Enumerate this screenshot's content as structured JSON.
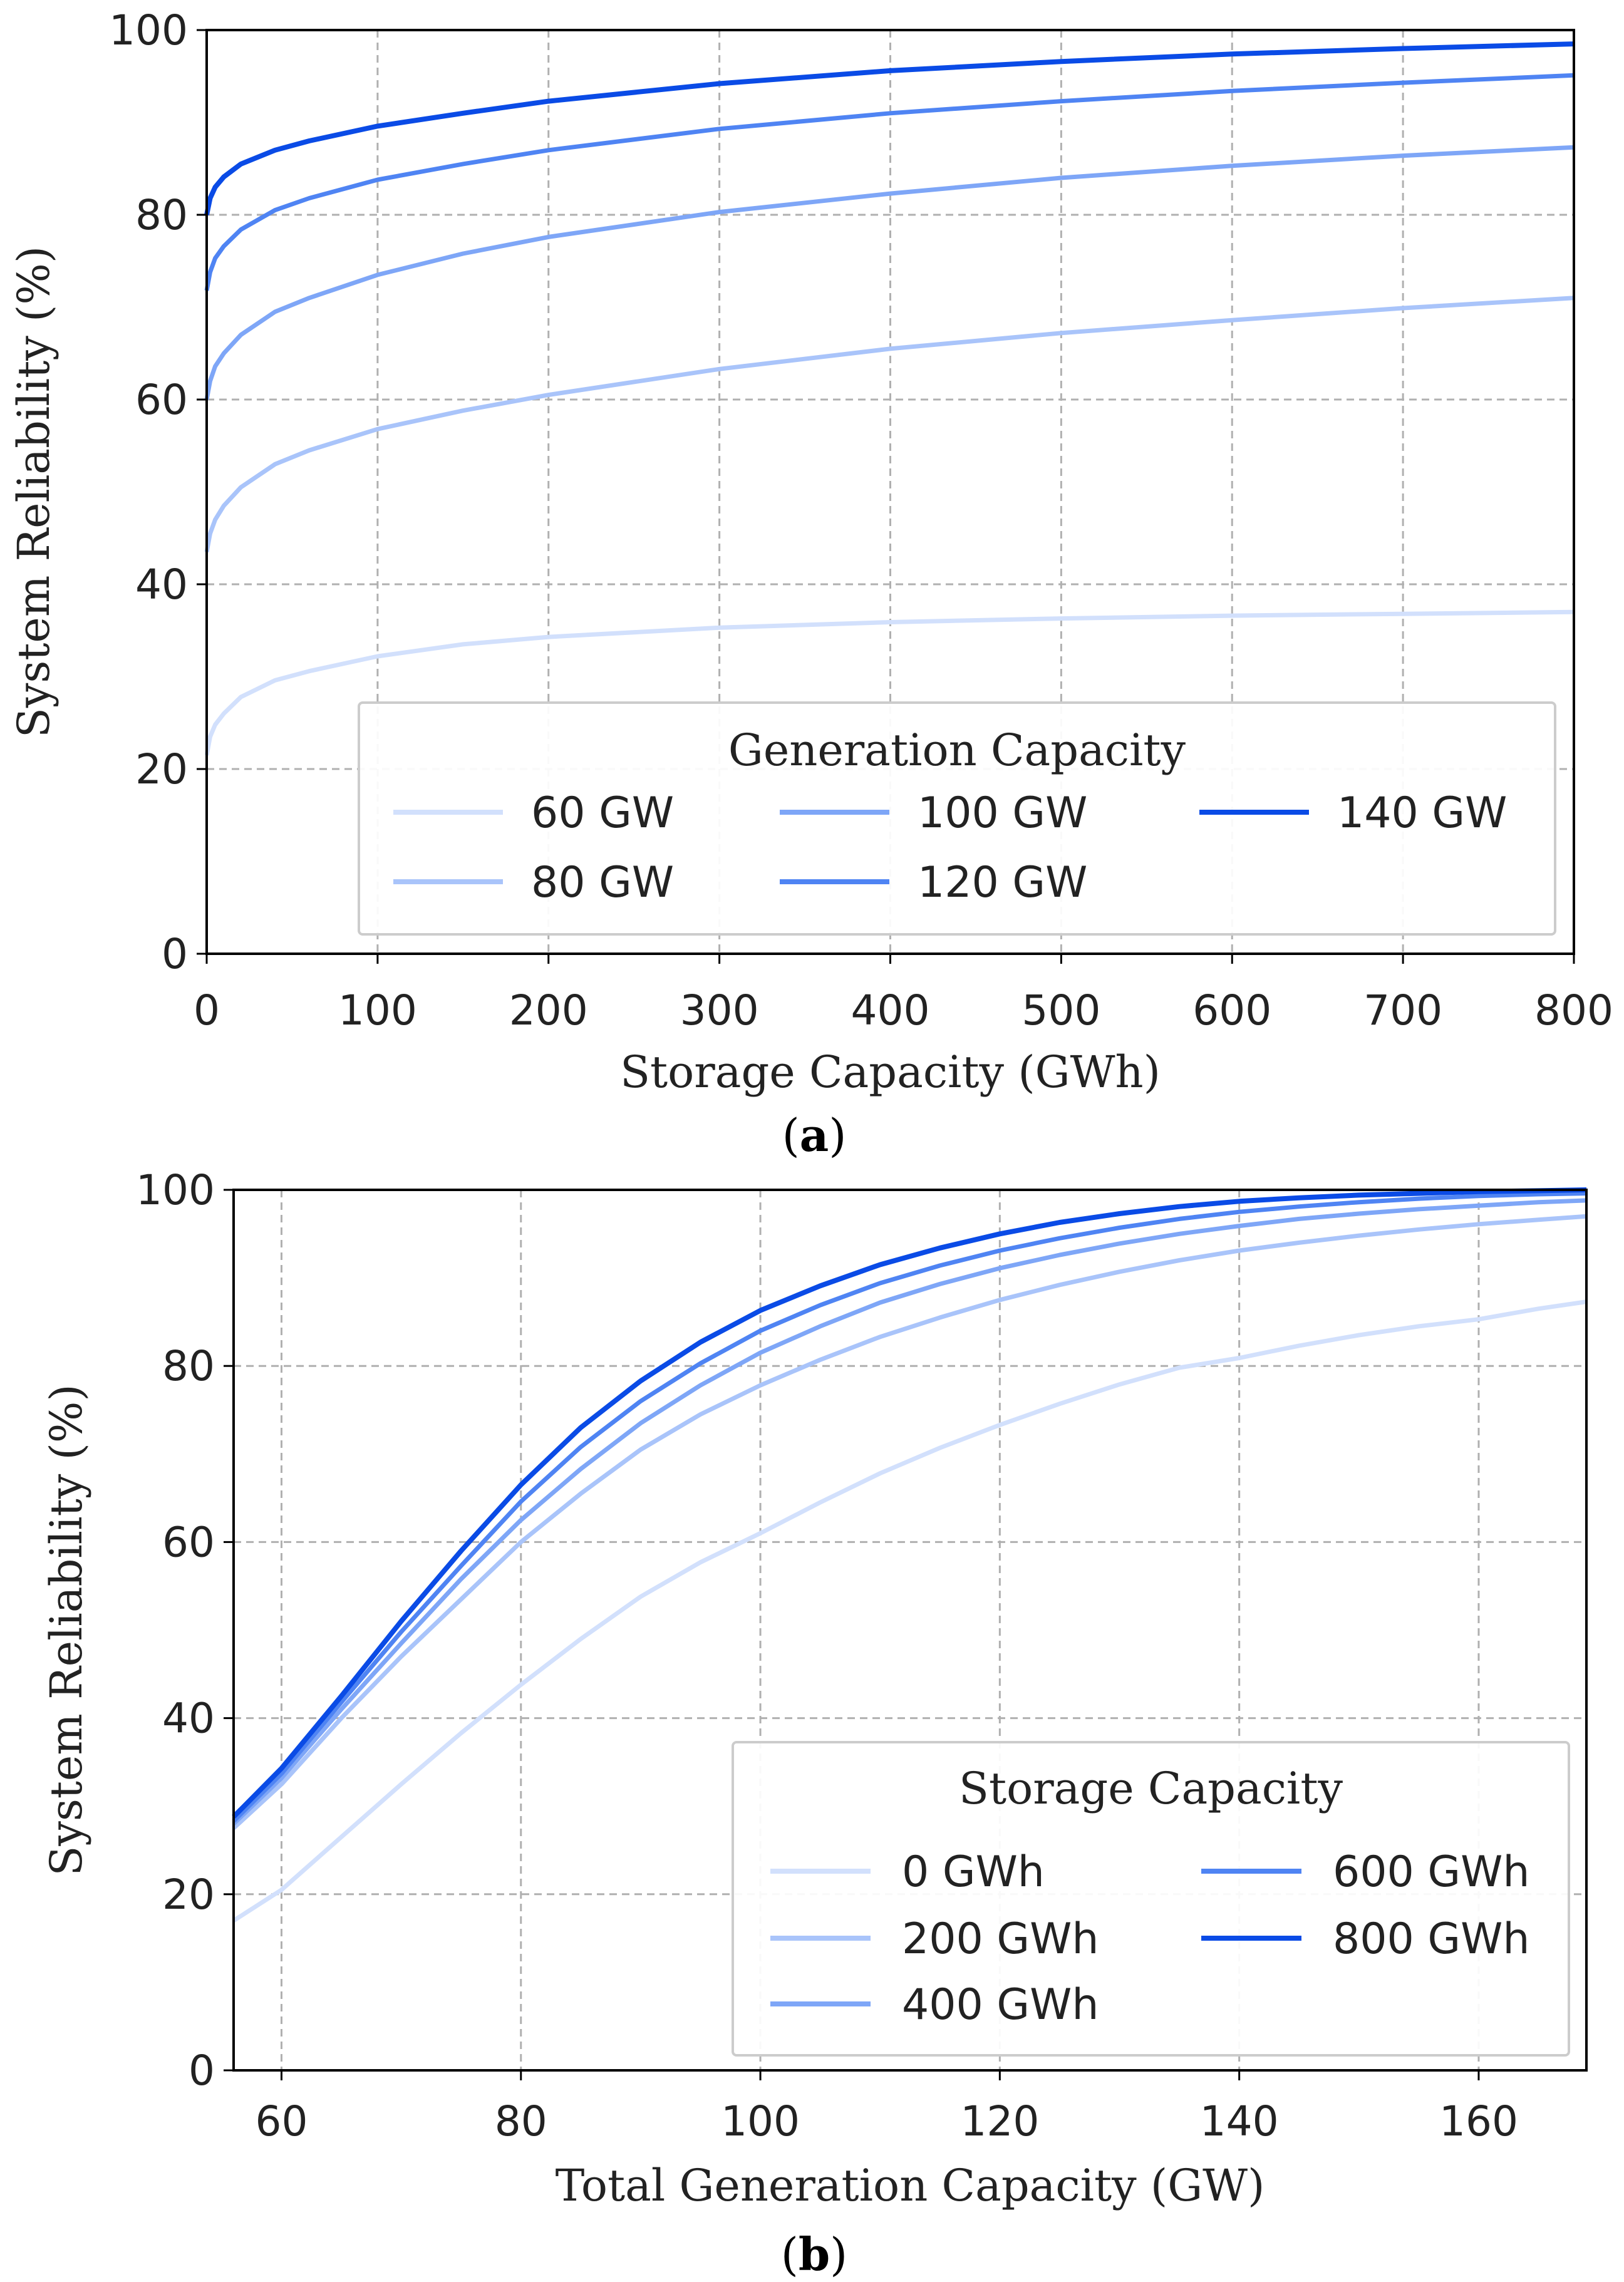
{
  "chart_data": [
    {
      "type": "line",
      "panel": "a",
      "xlabel": "Storage Capacity (GWh)",
      "ylabel": "System Reliability (%)",
      "xlim": [
        0,
        800
      ],
      "ylim": [
        0,
        100
      ],
      "xticks": [
        0,
        100,
        200,
        300,
        400,
        500,
        600,
        700,
        800
      ],
      "yticks": [
        0,
        20,
        40,
        60,
        80,
        100
      ],
      "grid": true,
      "legend": {
        "title": "Generation Capacity",
        "position": "lower-right",
        "columns": 3
      },
      "x": [
        0,
        2,
        5,
        10,
        20,
        40,
        60,
        100,
        150,
        200,
        300,
        400,
        500,
        600,
        700,
        800
      ],
      "series": [
        {
          "name": "60 GW",
          "color": "#d2e0fc",
          "values": [
            21.5,
            23.5,
            24.8,
            26.0,
            27.8,
            29.6,
            30.6,
            32.2,
            33.5,
            34.3,
            35.3,
            35.9,
            36.3,
            36.6,
            36.8,
            37.0
          ]
        },
        {
          "name": "80 GW",
          "color": "#a9c4fa",
          "values": [
            43.5,
            45.5,
            47.0,
            48.5,
            50.5,
            53.0,
            54.5,
            56.8,
            58.8,
            60.5,
            63.3,
            65.5,
            67.2,
            68.6,
            69.9,
            71.0
          ]
        },
        {
          "name": "100 GW",
          "color": "#7ea6f7",
          "values": [
            60.0,
            62.0,
            63.6,
            65.0,
            67.0,
            69.5,
            71.0,
            73.5,
            75.8,
            77.6,
            80.3,
            82.3,
            84.0,
            85.3,
            86.4,
            87.3
          ]
        },
        {
          "name": "120 GW",
          "color": "#4f84f3",
          "values": [
            71.8,
            73.8,
            75.3,
            76.6,
            78.4,
            80.5,
            81.8,
            83.8,
            85.5,
            87.0,
            89.3,
            91.0,
            92.3,
            93.4,
            94.3,
            95.1
          ]
        },
        {
          "name": "140 GW",
          "color": "#0a4be6",
          "values": [
            80.0,
            81.8,
            83.0,
            84.1,
            85.5,
            87.0,
            88.0,
            89.6,
            91.0,
            92.3,
            94.2,
            95.6,
            96.6,
            97.4,
            98.0,
            98.5
          ]
        }
      ]
    },
    {
      "type": "line",
      "panel": "b",
      "xlabel": "Total Generation Capacity (GW)",
      "ylabel": "System Reliability (%)",
      "xlim": [
        56,
        169
      ],
      "ylim": [
        0,
        100
      ],
      "xticks": [
        60,
        80,
        100,
        120,
        140,
        160
      ],
      "yticks": [
        0,
        20,
        40,
        60,
        80,
        100
      ],
      "grid": true,
      "legend": {
        "title": "Storage Capacity",
        "position": "lower-right",
        "columns": 2
      },
      "x": [
        56,
        60,
        65,
        70,
        75,
        80,
        85,
        90,
        95,
        100,
        105,
        110,
        115,
        120,
        125,
        130,
        135,
        140,
        145,
        150,
        155,
        160,
        165,
        169
      ],
      "series": [
        {
          "name": "0 GWh",
          "color": "#d2e0fc",
          "values": [
            17,
            20.5,
            26.5,
            32.5,
            38.3,
            43.8,
            49.0,
            53.8,
            57.7,
            61.0,
            64.5,
            67.8,
            70.7,
            73.3,
            75.7,
            77.9,
            79.8,
            80.9,
            82.3,
            83.5,
            84.5,
            85.3,
            86.5,
            87.3
          ]
        },
        {
          "name": "200 GWh",
          "color": "#a9c4fa",
          "values": [
            27.5,
            32.5,
            40.0,
            47.0,
            53.5,
            60.0,
            65.5,
            70.5,
            74.5,
            77.8,
            80.7,
            83.3,
            85.5,
            87.5,
            89.2,
            90.7,
            92.0,
            93.1,
            94.0,
            94.8,
            95.5,
            96.1,
            96.6,
            97.0
          ]
        },
        {
          "name": "400 GWh",
          "color": "#7ea6f7",
          "values": [
            28.0,
            33.2,
            41.0,
            48.5,
            55.8,
            62.5,
            68.3,
            73.5,
            77.8,
            81.5,
            84.5,
            87.2,
            89.3,
            91.1,
            92.6,
            93.9,
            95.0,
            95.9,
            96.7,
            97.3,
            97.8,
            98.2,
            98.6,
            98.8
          ]
        },
        {
          "name": "600 GWh",
          "color": "#4f84f3",
          "values": [
            28.3,
            33.7,
            41.8,
            49.8,
            57.3,
            64.6,
            70.8,
            76.0,
            80.3,
            84.0,
            86.9,
            89.4,
            91.4,
            93.1,
            94.5,
            95.7,
            96.7,
            97.5,
            98.1,
            98.6,
            99.0,
            99.3,
            99.5,
            99.6
          ]
        },
        {
          "name": "800 GWh",
          "color": "#0a4be6",
          "values": [
            28.8,
            34.3,
            42.5,
            51.0,
            59.0,
            66.5,
            73.0,
            78.3,
            82.7,
            86.3,
            89.1,
            91.5,
            93.4,
            95.0,
            96.3,
            97.3,
            98.1,
            98.7,
            99.1,
            99.4,
            99.6,
            99.8,
            99.9,
            100.0
          ]
        }
      ]
    }
  ],
  "captions": [
    {
      "open": "(",
      "letter": "a",
      "close": ")"
    },
    {
      "open": "(",
      "letter": "b",
      "close": ")"
    }
  ]
}
